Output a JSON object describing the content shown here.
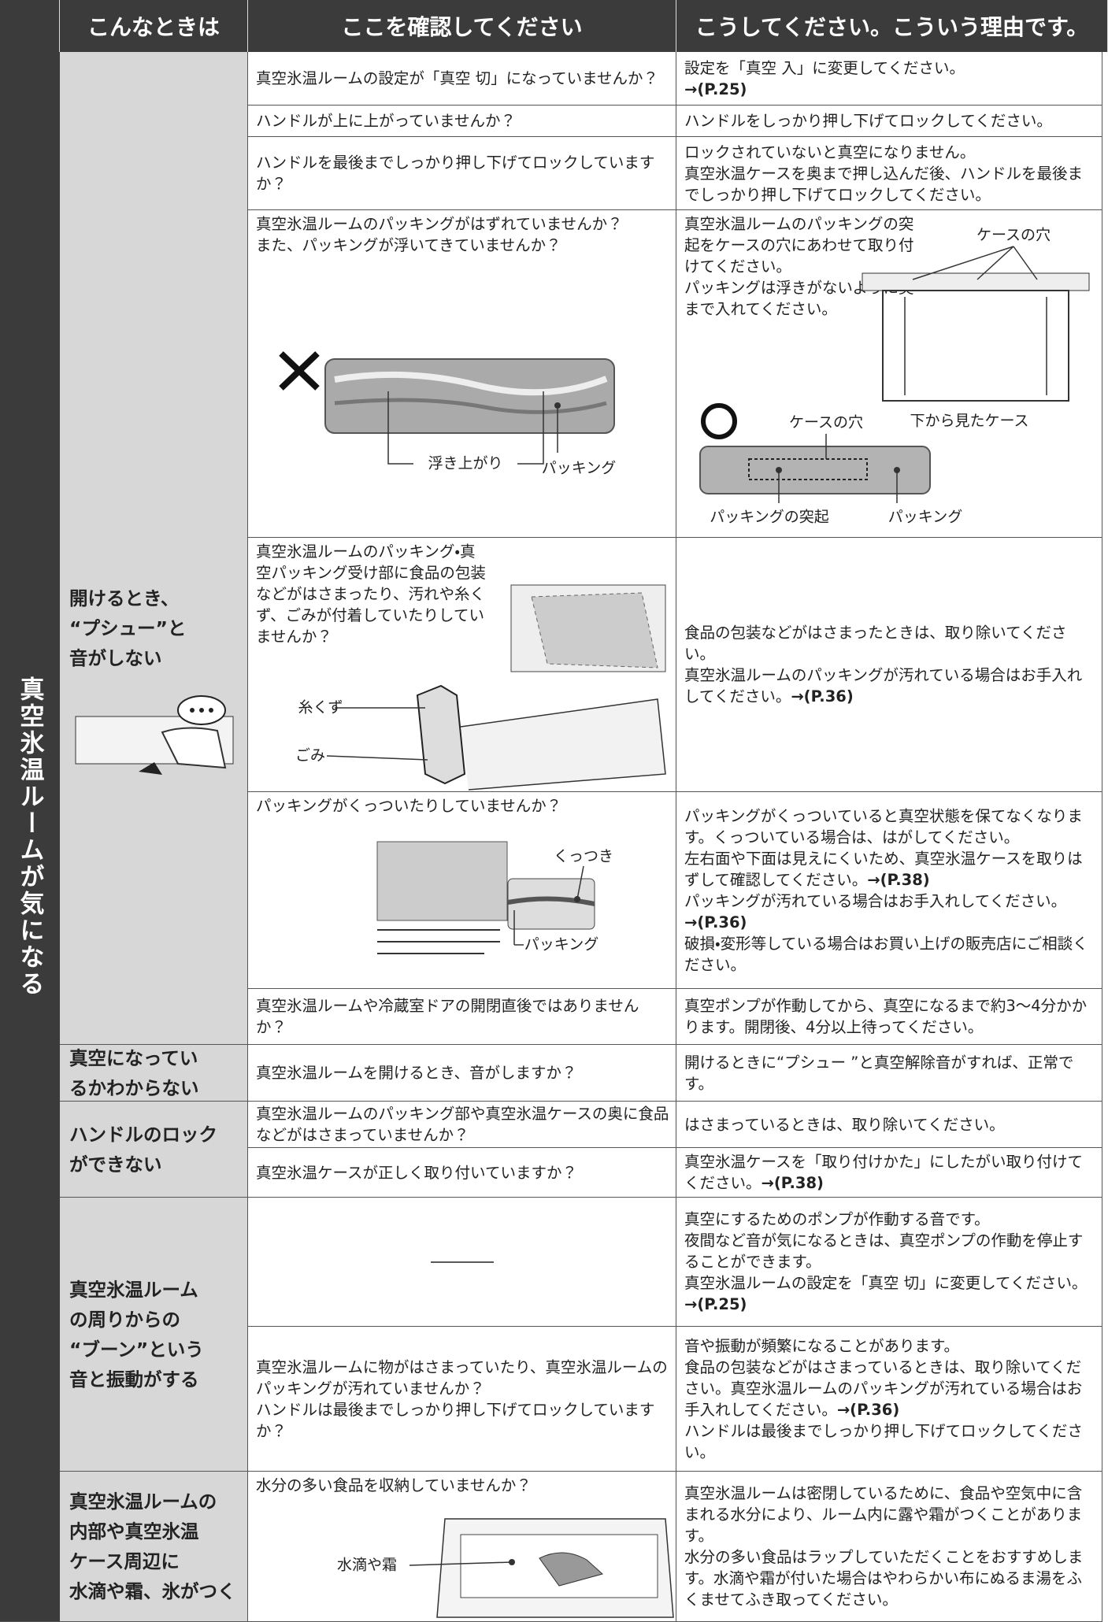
{
  "header": {
    "columns": [
      "こんなときは",
      "ここを確認してください",
      "こうしてください。こういう理由です。"
    ]
  },
  "side_label": "真空氷温ルームが気になる",
  "groups": [
    {
      "symptom": [
        "開けるとき、",
        "“プシュー”と",
        "音がしない"
      ],
      "rows": [
        {
          "check": "真空氷温ルームの設定が「真空 切」になっていませんか？",
          "remedy": [
            "設定を「真空 入」に変更してください。",
            {
              "ref": "→(P.25)"
            }
          ]
        },
        {
          "check": "ハンドルが上に上がっていませんか？",
          "remedy": "ハンドルをしっかり押し下げてロックしてください。"
        },
        {
          "check": "ハンドルを最後までしっかり押し下げてロックしていますか？",
          "remedy": [
            "ロックされていないと真空になりません。",
            "真空氷温ケースを奥まで押し込んだ後、ハンドルを最後までしっかり押し下げてロックしてください。"
          ]
        },
        {
          "check": [
            "真空氷温ルームのパッキングがはずれていませんか？",
            "また、パッキングが浮いてきていませんか？"
          ],
          "check_figure_labels": [
            "浮き上がり",
            "パッキング"
          ],
          "remedy": [
            "真空氷温ルームのパッキングの突起をケースの穴にあわせて取り付けてください。",
            "パッキングは浮きがないように奥まで入れてください。"
          ],
          "remedy_figure_labels": [
            "ケースの穴",
            "ケースの穴",
            "下から見たケース",
            "パッキングの突起",
            "パッキング"
          ]
        },
        {
          "check": "真空氷温ルームのパッキング・真空パッキング受け部に食品の包装などがはさまったり、汚れや糸くず、ごみが付着していたりしていませんか？",
          "check_figure_labels": [
            "糸くず",
            "ごみ"
          ],
          "remedy": [
            "食品の包装などがはさまったときは、取り除いてください。",
            {
              "text": "真空氷温ルームのパッキングが汚れている場合はお手入れしてください。",
              "ref": "→(P.36)"
            }
          ]
        },
        {
          "check": "パッキングがくっついたりしていませんか？",
          "check_figure_labels": [
            "くっつき",
            "パッキング"
          ],
          "remedy": [
            "パッキングがくっついていると真空状態を保てなくなります。くっついている場合は、はがしてください。",
            {
              "text": "左右面や下面は見えにくいため、真空氷温ケースを取りはずして確認してください。",
              "ref": "→(P.38)"
            },
            {
              "text": "パッキングが汚れている場合はお手入れしてください。",
              "ref": "→(P.36)"
            },
            "破損・変形等している場合はお買い上げの販売店にご相談ください。"
          ]
        },
        {
          "check": "真空氷温ルームや冷蔵室ドアの開閉直後ではありませんか？",
          "remedy": "真空ポンプが作動してから、真空になるまで約3～4分かかります。開閉後、4分以上待ってください。"
        }
      ]
    },
    {
      "symptom": [
        "真空になってい",
        "るかわからない"
      ],
      "rows": [
        {
          "check": "真空氷温ルームを開けるとき、音がしますか？",
          "remedy": "開けるときに“プシュー ”と真空解除音がすれば、正常です。"
        }
      ]
    },
    {
      "symptom": [
        "ハンドルのロック",
        "ができない"
      ],
      "rows": [
        {
          "check": "真空氷温ルームのパッキング部や真空氷温ケースの奥に食品などがはさまっていませんか？",
          "remedy": "はさまっているときは、取り除いてください。"
        },
        {
          "check": "真空氷温ケースが正しく取り付いていますか？",
          "remedy": [
            {
              "text": "真空氷温ケースを「取り付けかた」にしたがい取り付けてください。",
              "ref": "→(P.38)"
            }
          ]
        }
      ]
    },
    {
      "symptom": [
        "真空氷温ルーム",
        "の周りからの",
        "“ブーン”という",
        "音と振動がする"
      ],
      "rows": [
        {
          "remedy": [
            "真空にするためのポンプが作動する音です。",
            "夜間など音が気になるときは、真空ポンプの作動を停止することができます。",
            {
              "text": "真空氷温ルームの設定を「真空 切」に変更してください。",
              "ref": "→(P.25)"
            }
          ]
        },
        {
          "check": [
            "真空氷温ルームに物がはさまっていたり、真空氷温ルームのパッキングが汚れていませんか？",
            "ハンドルは最後までしっかり押し下げてロックしていますか？"
          ],
          "remedy": [
            "音や振動が頻繁になることがあります。",
            {
              "text": "食品の包装などがはさまっているときは、取り除いてください。真空氷温ルームのパッキングが汚れている場合はお手入れしてください。",
              "ref": "→(P.36)"
            },
            "ハンドルは最後までしっかり押し下げてロックしてください。"
          ]
        }
      ]
    },
    {
      "symptom": [
        "真空氷温ルームの",
        "内部や真空氷温",
        "ケース周辺に",
        "水滴や霜、氷がつく"
      ],
      "rows": [
        {
          "check": "水分の多い食品を収納していませんか？",
          "check_figure_labels": [
            "水滴や霜"
          ],
          "remedy": [
            "真空氷温ルームは密閉しているために、食品や空気中に含まれる水分により、ルーム内に露や霜がつくことがあります。",
            "水分の多い食品はラップしていただくことをおすすめします。水滴や霜が付いた場合はやわらかい布にぬるま湯をふくませてふき取ってください。"
          ]
        }
      ]
    }
  ]
}
